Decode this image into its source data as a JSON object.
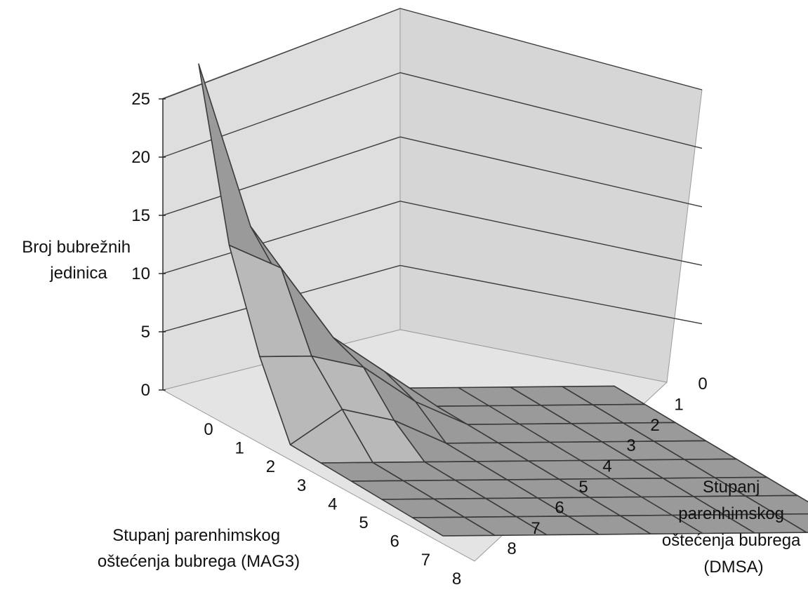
{
  "chart_data": {
    "type": "surface",
    "title": "",
    "zlabel_lines": [
      "Broj bubrežnih",
      "jedinica"
    ],
    "xlabel_lines": [
      "Stupanj parenhimskog",
      "oštećenja bubrega (MAG3)"
    ],
    "ylabel_lines": [
      "Stupanj",
      "parenhimskog",
      "oštećenja bubrega",
      "(DMSA)"
    ],
    "x_ticks": [
      "0",
      "1",
      "2",
      "3",
      "4",
      "5",
      "6",
      "7",
      "8"
    ],
    "y_ticks": [
      "0",
      "1",
      "2",
      "3",
      "4",
      "5",
      "6",
      "7",
      "8"
    ],
    "z_ticks": [
      "0",
      "5",
      "10",
      "15",
      "20",
      "25"
    ],
    "zlim": [
      0,
      25
    ],
    "grid": true,
    "colors": {
      "surface": "#9a9a9a",
      "surface_light": "#b9b9b9",
      "edge": "#3a3a3a",
      "wall": "#dedede",
      "floor": "#e4e4e4",
      "gridline": "#3d3d3d"
    },
    "series_note_rows_x_mag3_cols_y_dmsa": [
      [
        28,
        14,
        6,
        0,
        0,
        0,
        0,
        0,
        0
      ],
      [
        14,
        12,
        6,
        3,
        0,
        0,
        0,
        0,
        0
      ],
      [
        6,
        6,
        5,
        2,
        0,
        0,
        0,
        0,
        0
      ],
      [
        0,
        3,
        2,
        0,
        0,
        0,
        0,
        0,
        0
      ],
      [
        0,
        0,
        0,
        0,
        0,
        0,
        0,
        0,
        0
      ],
      [
        0,
        0,
        0,
        0,
        0,
        0,
        0,
        0,
        0
      ],
      [
        0,
        0,
        0,
        0,
        0,
        0,
        0,
        0,
        0
      ],
      [
        0,
        0,
        0,
        0,
        0,
        0,
        0,
        0,
        0
      ],
      [
        0,
        0,
        0,
        0,
        0,
        0,
        0,
        0,
        0
      ]
    ]
  }
}
